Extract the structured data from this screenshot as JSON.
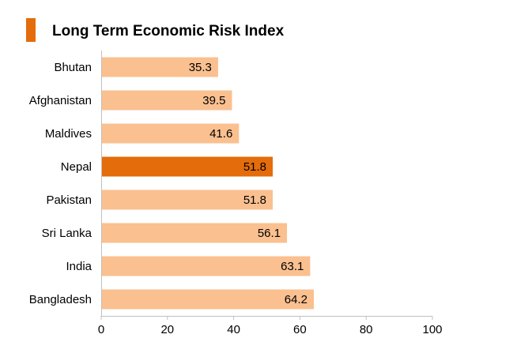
{
  "header": {
    "title": "Long Term Economic Risk Index"
  },
  "colors": {
    "bar": "#FAC090",
    "highlight": "#E46C0A",
    "axis": "#C0C0C0",
    "marker": "#E46C0A"
  },
  "chart_data": {
    "type": "bar",
    "orientation": "horizontal",
    "title": "Long Term Economic Risk Index",
    "categories": [
      "Bhutan",
      "Afghanistan",
      "Maldives",
      "Nepal",
      "Pakistan",
      "Sri Lanka",
      "India",
      "Bangladesh"
    ],
    "values": [
      35.3,
      39.5,
      41.6,
      51.8,
      51.8,
      56.1,
      63.1,
      64.2
    ],
    "value_labels": [
      "35.3",
      "39.5",
      "41.6",
      "51.8",
      "51.8",
      "56.1",
      "63.1",
      "64.2"
    ],
    "highlight": "Nepal",
    "xlim": [
      0,
      100
    ],
    "x_ticks": [
      0,
      20,
      40,
      60,
      80,
      100
    ],
    "x_tick_labels": [
      "0",
      "20",
      "40",
      "60",
      "80",
      "100"
    ],
    "grid": false,
    "legend": "none"
  }
}
